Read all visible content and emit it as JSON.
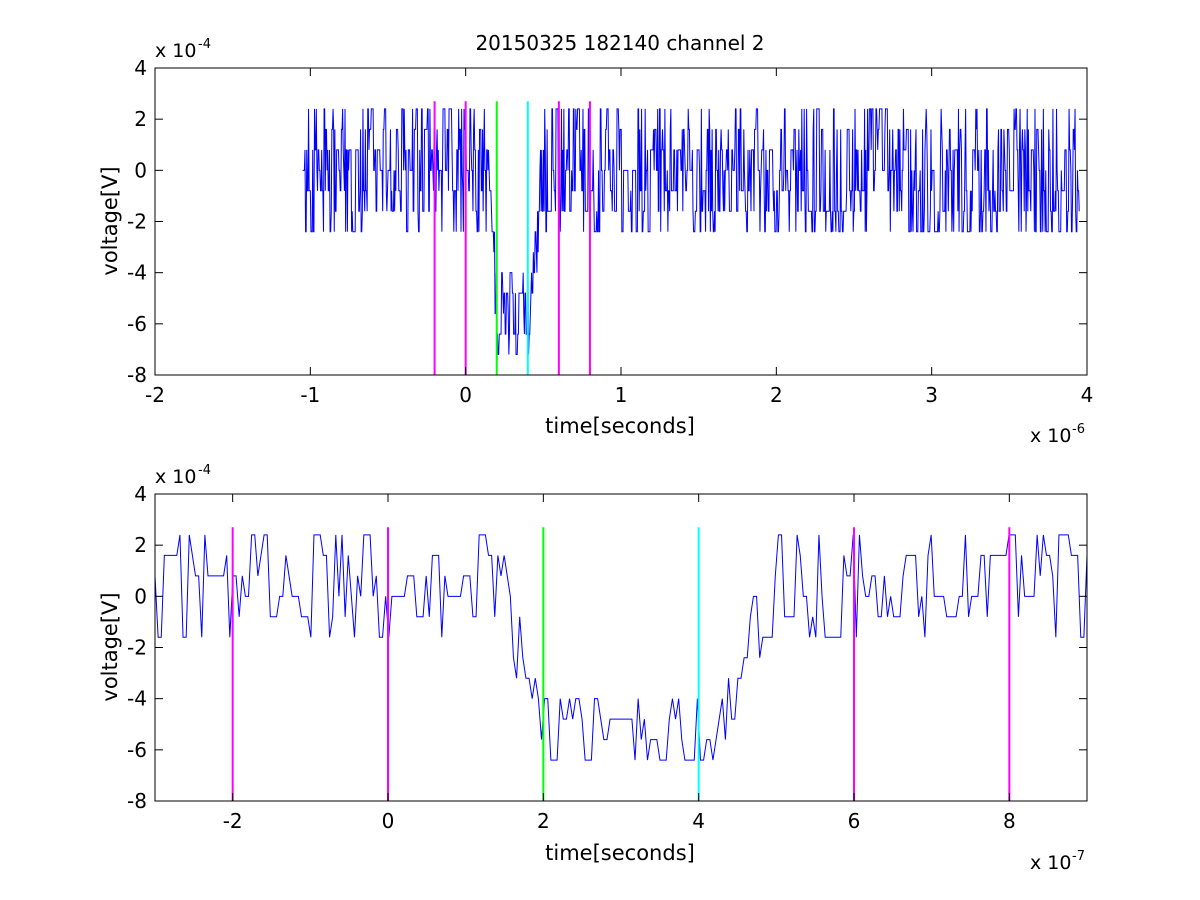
{
  "figure_title": "20150325 182140 channel 2",
  "colors": {
    "signal": "#0000ff",
    "magenta": "#ff00ff",
    "green": "#00ff00",
    "cyan": "#00ffff",
    "axes": "#000000",
    "background": "#ffffff"
  },
  "chart_data": [
    {
      "type": "line",
      "title": "20150325 182140 channel 2",
      "xlabel": "time[seconds]",
      "ylabel": "voltage[V]",
      "x_exponent_label": "x 10",
      "x_exponent": "-6",
      "y_exponent_label": "x 10",
      "y_exponent": "-4",
      "xlim": [
        -2,
        4
      ],
      "ylim": [
        -8,
        4
      ],
      "xticks": [
        -2,
        -1,
        0,
        1,
        2,
        3,
        4
      ],
      "yticks": [
        -8,
        -6,
        -4,
        -2,
        0,
        2,
        4
      ],
      "grid": false,
      "signal": {
        "x_start": -1.05,
        "x_end": 3.95,
        "points": 1300,
        "y_step": 0.8,
        "noise_range": [
          -2.4,
          2.4
        ],
        "dip": {
          "start": 0.15,
          "min_from": 0.2,
          "min_to": 0.4,
          "end": 0.5,
          "level": -5.6
        }
      },
      "vlines": [
        {
          "x": -0.2,
          "color": "magenta"
        },
        {
          "x": 0.0,
          "color": "magenta"
        },
        {
          "x": 0.2,
          "color": "green"
        },
        {
          "x": 0.4,
          "color": "cyan"
        },
        {
          "x": 0.6,
          "color": "magenta"
        },
        {
          "x": 0.8,
          "color": "magenta"
        }
      ]
    },
    {
      "type": "line",
      "xlabel": "time[seconds]",
      "ylabel": "voltage[V]",
      "x_exponent_label": "x 10",
      "x_exponent": "-7",
      "y_exponent_label": "x 10",
      "y_exponent": "-4",
      "xlim": [
        -3,
        9
      ],
      "ylim": [
        -8,
        4
      ],
      "xticks": [
        -2,
        0,
        2,
        4,
        6,
        8
      ],
      "yticks": [
        -8,
        -6,
        -4,
        -2,
        0,
        2,
        4
      ],
      "grid": false,
      "signal": {
        "x_start": -3,
        "x_end": 9,
        "points": 300,
        "y_step": 0.8,
        "noise_range": [
          -1.6,
          2.4
        ],
        "dip": {
          "start": 1.5,
          "min_from": 2.0,
          "min_to": 4.2,
          "end": 5.0,
          "level": -5.6
        }
      },
      "vlines": [
        {
          "x": -2,
          "color": "magenta"
        },
        {
          "x": 0,
          "color": "magenta"
        },
        {
          "x": 2,
          "color": "green"
        },
        {
          "x": 4,
          "color": "cyan"
        },
        {
          "x": 6,
          "color": "magenta"
        },
        {
          "x": 8,
          "color": "magenta"
        }
      ]
    }
  ]
}
